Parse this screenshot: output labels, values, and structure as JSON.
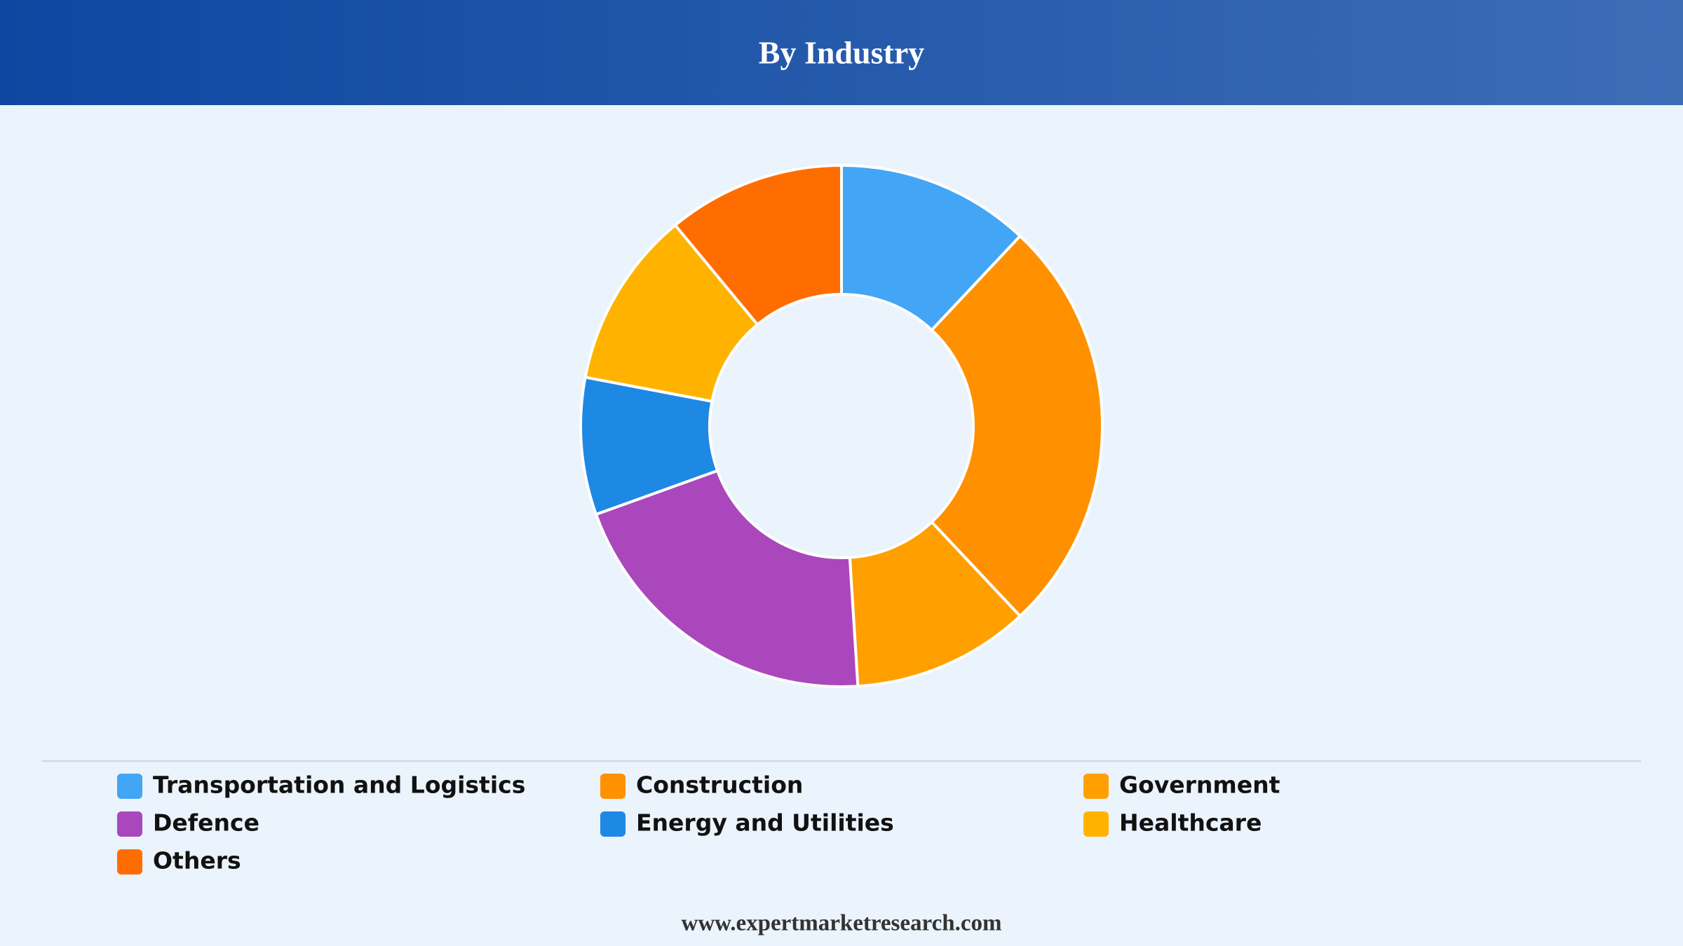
{
  "chart_data": {
    "type": "donut",
    "title": "By Industry",
    "categories": [
      "Transportation and Logistics",
      "Construction",
      "Government",
      "Defence",
      "Energy and Utilities",
      "Healthcare",
      "Others"
    ],
    "values": [
      12,
      26,
      11,
      20.5,
      8.5,
      11,
      11
    ],
    "colors": [
      "#42a5f5",
      "#ff9100",
      "#ffa000",
      "#ab47bc",
      "#1e88e5",
      "#ffb300",
      "#ff6d00"
    ],
    "legend": "bottom"
  },
  "footer": "www.expertmarketresearch.com"
}
